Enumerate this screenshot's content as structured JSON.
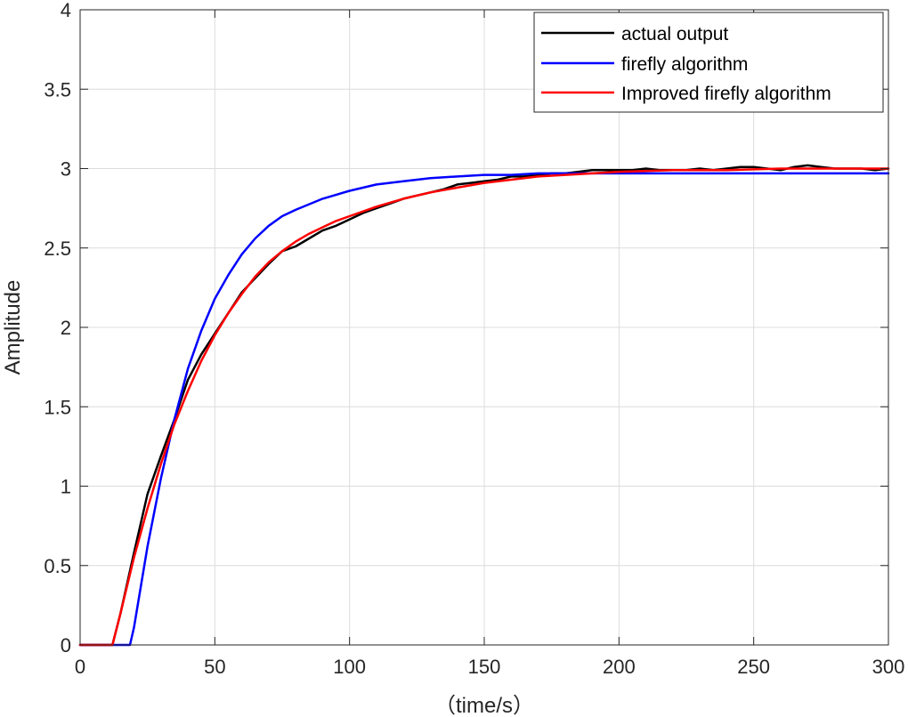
{
  "chart_data": {
    "type": "line",
    "title": "",
    "xlabel": "（time/s）",
    "ylabel": "Amplitude",
    "xlim": [
      0,
      300
    ],
    "ylim": [
      0,
      4
    ],
    "xticks": [
      0,
      50,
      100,
      150,
      200,
      250,
      300
    ],
    "yticks": [
      0,
      0.5,
      1,
      1.5,
      2,
      2.5,
      3,
      3.5,
      4
    ],
    "xtick_labels": [
      "0",
      "50",
      "100",
      "150",
      "200",
      "250",
      "300"
    ],
    "ytick_labels": [
      "0",
      "0.5",
      "1",
      "1.5",
      "2",
      "2.5",
      "3",
      "3.5",
      "4"
    ],
    "grid": true,
    "legend_position": "top-right",
    "series": [
      {
        "name": "actual output",
        "color": "#000000",
        "x": [
          0,
          12,
          15,
          20,
          25,
          30,
          35,
          40,
          45,
          50,
          55,
          60,
          65,
          70,
          75,
          80,
          85,
          90,
          95,
          100,
          105,
          110,
          115,
          120,
          125,
          130,
          135,
          140,
          145,
          150,
          155,
          160,
          165,
          170,
          175,
          180,
          185,
          190,
          195,
          200,
          205,
          210,
          215,
          220,
          225,
          230,
          235,
          240,
          245,
          250,
          255,
          260,
          265,
          270,
          275,
          280,
          285,
          290,
          295,
          300
        ],
        "y": [
          0,
          0,
          0.2,
          0.58,
          0.95,
          1.19,
          1.42,
          1.67,
          1.83,
          1.96,
          2.09,
          2.22,
          2.31,
          2.4,
          2.48,
          2.51,
          2.56,
          2.61,
          2.64,
          2.68,
          2.72,
          2.75,
          2.78,
          2.81,
          2.83,
          2.85,
          2.87,
          2.9,
          2.91,
          2.92,
          2.93,
          2.95,
          2.95,
          2.96,
          2.97,
          2.97,
          2.98,
          2.99,
          2.99,
          2.99,
          2.99,
          3.0,
          2.99,
          2.99,
          2.99,
          3.0,
          2.99,
          3.0,
          3.01,
          3.01,
          3.0,
          2.99,
          3.01,
          3.02,
          3.01,
          3.0,
          3.0,
          3.0,
          2.99,
          3.0
        ]
      },
      {
        "name": "firefly algorithm",
        "color": "#0000ff",
        "x": [
          0,
          18.5,
          20,
          25,
          30,
          35,
          40,
          45,
          50,
          55,
          60,
          65,
          70,
          75,
          80,
          90,
          100,
          110,
          120,
          130,
          140,
          150,
          160,
          170,
          180,
          200,
          220,
          240,
          260,
          280,
          300
        ],
        "y": [
          0,
          0,
          0.11,
          0.62,
          1.05,
          1.42,
          1.74,
          1.98,
          2.18,
          2.33,
          2.46,
          2.56,
          2.64,
          2.7,
          2.74,
          2.81,
          2.86,
          2.9,
          2.92,
          2.94,
          2.95,
          2.96,
          2.96,
          2.97,
          2.97,
          2.97,
          2.97,
          2.97,
          2.97,
          2.97,
          2.97
        ]
      },
      {
        "name": "Improved firefly algorithm",
        "color": "#ff0000",
        "x": [
          0,
          12,
          15,
          20,
          25,
          30,
          35,
          40,
          45,
          50,
          55,
          60,
          65,
          70,
          75,
          80,
          85,
          90,
          95,
          100,
          110,
          120,
          130,
          140,
          150,
          160,
          170,
          180,
          190,
          200,
          220,
          240,
          260,
          280,
          300
        ],
        "y": [
          0,
          0,
          0.2,
          0.55,
          0.86,
          1.14,
          1.39,
          1.6,
          1.79,
          1.95,
          2.09,
          2.21,
          2.32,
          2.41,
          2.48,
          2.54,
          2.59,
          2.63,
          2.67,
          2.7,
          2.76,
          2.81,
          2.85,
          2.88,
          2.91,
          2.93,
          2.95,
          2.96,
          2.97,
          2.98,
          2.99,
          2.99,
          3.0,
          3.0,
          3.0
        ]
      }
    ]
  }
}
